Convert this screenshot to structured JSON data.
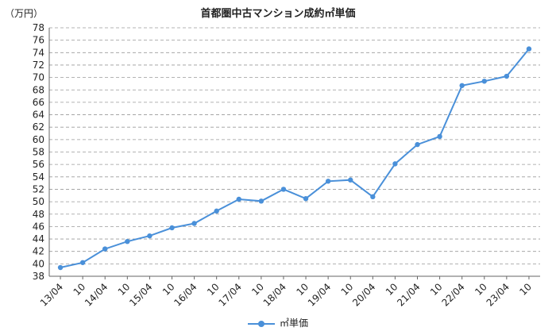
{
  "chart_data": {
    "type": "line",
    "title": "首都圏中古マンション成約㎡単価",
    "ylabel": "（万円）",
    "xlabel": "",
    "ylim": [
      38,
      78
    ],
    "yticks": [
      38,
      40,
      42,
      44,
      46,
      48,
      50,
      52,
      54,
      56,
      58,
      60,
      62,
      64,
      66,
      68,
      70,
      72,
      74,
      76,
      78
    ],
    "grid": true,
    "legend_position": "bottom-center",
    "categories": [
      "13/04",
      "10",
      "14/04",
      "10",
      "15/04",
      "10",
      "16/04",
      "10",
      "17/04",
      "10",
      "18/04",
      "10",
      "19/04",
      "10",
      "20/04",
      "10",
      "21/04",
      "10",
      "22/04",
      "10",
      "23/04",
      "10"
    ],
    "series": [
      {
        "name": "㎡単価",
        "color": "#4a90d9",
        "values": [
          39.4,
          40.2,
          42.4,
          43.6,
          44.5,
          45.8,
          46.5,
          48.5,
          50.4,
          50.1,
          52.0,
          50.5,
          53.3,
          53.5,
          50.8,
          56.1,
          59.2,
          60.5,
          68.7,
          69.4,
          70.2,
          74.6
        ]
      }
    ]
  }
}
